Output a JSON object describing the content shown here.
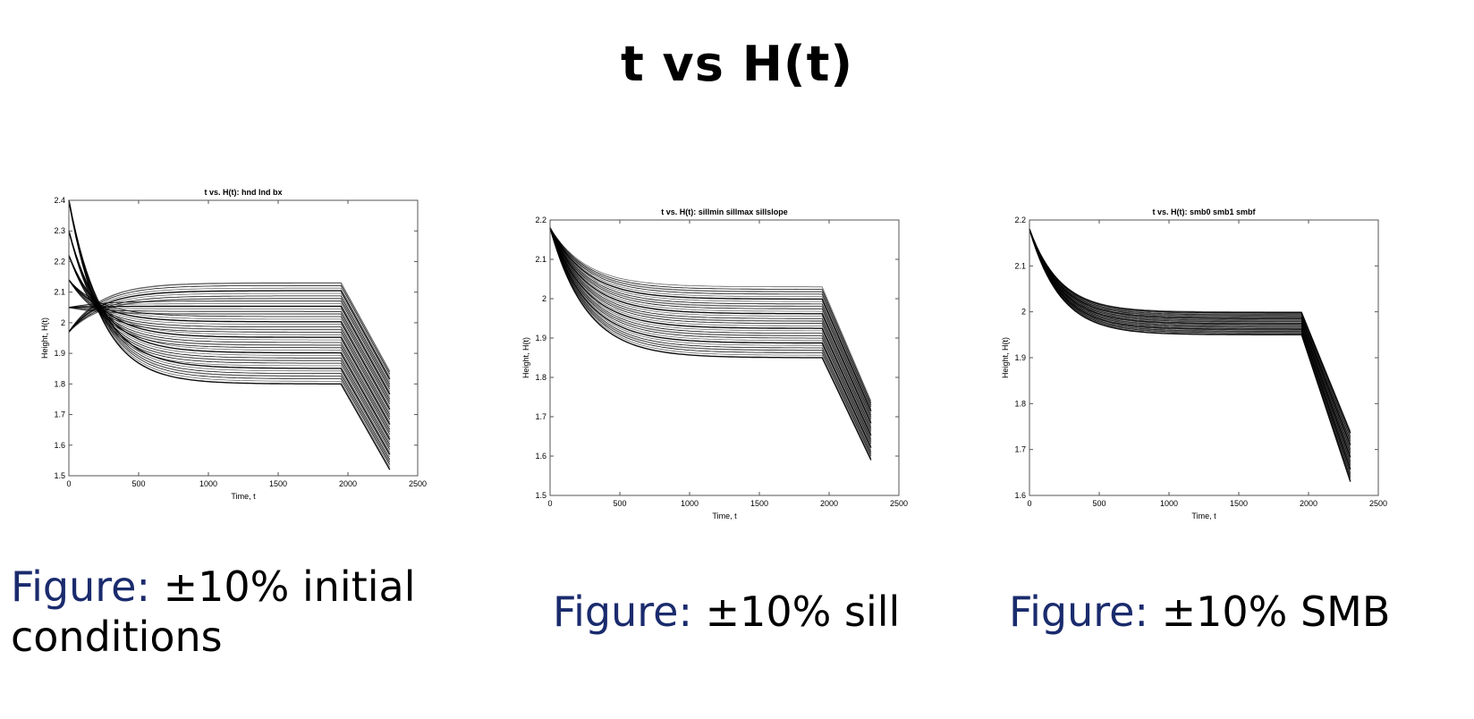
{
  "slide": {
    "title": "t vs H(t)"
  },
  "captions": [
    {
      "prefix": "Figure:",
      "text": "±10% initial",
      "text2": "conditions"
    },
    {
      "prefix": "Figure:",
      "text": "±10% sill"
    },
    {
      "prefix": "Figure:",
      "text": "±10% SMB"
    }
  ],
  "colors": {
    "title": "#000000",
    "caption_prefix": "#1a2b6d",
    "lines": "#000000",
    "axes": "#555555"
  },
  "chart_data": [
    {
      "type": "line",
      "title": "t vs. H(t): hnd lnd bx",
      "xlabel": "Time, t",
      "ylabel": "Height, H(t)",
      "xlim": [
        0,
        2500
      ],
      "ylim": [
        1.5,
        2.4
      ],
      "xticks": [
        0,
        500,
        1000,
        1500,
        2000,
        2500
      ],
      "yticks": [
        1.5,
        1.6,
        1.7,
        1.8,
        1.9,
        2,
        2.1,
        2.2,
        2.3,
        2.4
      ],
      "ytick_labels": [
        "1.5",
        "1.6",
        "1.7",
        "1.8",
        "1.9",
        "2",
        "2.1",
        "2.2",
        "2.3",
        "2.4"
      ],
      "grid": false,
      "series_family": {
        "count": 40,
        "t_break": 1950,
        "t_end": 2300,
        "start_values": [
          2.4,
          2.3,
          2.22,
          2.14,
          2.05,
          1.97
        ],
        "plateau_range": [
          1.8,
          2.13
        ],
        "end_range": [
          1.52,
          1.84
        ],
        "decay_tau": 230
      }
    },
    {
      "type": "line",
      "title": "t vs. H(t): sillmin sillmax sillslope",
      "xlabel": "Time, t",
      "ylabel": "Height, H(t)",
      "xlim": [
        0,
        2500
      ],
      "ylim": [
        1.5,
        2.2
      ],
      "xticks": [
        0,
        500,
        1000,
        1500,
        2000,
        2500
      ],
      "yticks": [
        1.5,
        1.6,
        1.7,
        1.8,
        1.9,
        2,
        2.1,
        2.2
      ],
      "ytick_labels": [
        "1.5",
        "1.6",
        "1.7",
        "1.8",
        "1.9",
        "2",
        "2.1",
        "2.2"
      ],
      "grid": false,
      "series_family": {
        "count": 30,
        "t_break": 1950,
        "t_end": 2300,
        "start_values": [
          2.18
        ],
        "plateau_range": [
          1.85,
          2.03
        ],
        "end_range": [
          1.59,
          1.74
        ],
        "decay_tau": 260
      }
    },
    {
      "type": "line",
      "title": "t vs. H(t): smb0 smb1 smbf",
      "xlabel": "Time, t",
      "ylabel": "Height, H(t)",
      "xlim": [
        0,
        2500
      ],
      "ylim": [
        1.6,
        2.2
      ],
      "xticks": [
        0,
        500,
        1000,
        1500,
        2000,
        2500
      ],
      "yticks": [
        1.6,
        1.7,
        1.8,
        1.9,
        2,
        2.1,
        2.2
      ],
      "ytick_labels": [
        "1.6",
        "1.7",
        "1.8",
        "1.9",
        "2",
        "2.1",
        "2.2"
      ],
      "grid": false,
      "series_family": {
        "count": 26,
        "t_break": 1950,
        "t_end": 2300,
        "start_values": [
          2.18
        ],
        "plateau_range": [
          1.95,
          2.0
        ],
        "end_range": [
          1.63,
          1.74
        ],
        "decay_tau": 220
      }
    }
  ]
}
